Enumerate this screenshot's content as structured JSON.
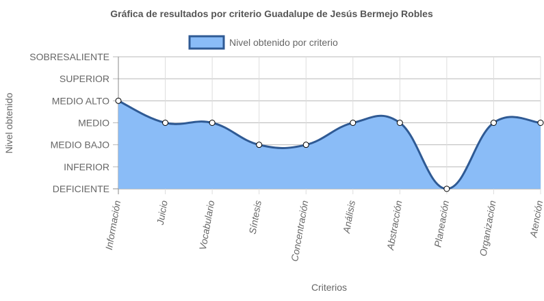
{
  "chart_data": {
    "type": "area",
    "title": "Gráfica de resultados por criterio Guadalupe de Jesús Bermejo Robles",
    "xlabel": "Criterios",
    "ylabel": "Nivel obtenido",
    "categories": [
      "Información",
      "Juicio",
      "Vocabulario",
      "Síntesis",
      "Concentración",
      "Análisis",
      "Abstracción",
      "Planeación",
      "Organización",
      "Atención"
    ],
    "y_levels": [
      "DEFICIENTE",
      "INFERIOR",
      "MEDIO BAJO",
      "MEDIO",
      "MEDIO ALTO",
      "SUPERIOR",
      "SOBRESALIENTE"
    ],
    "ylim": [
      0,
      6
    ],
    "series": [
      {
        "name": "Nivel obtenido por criterio",
        "values": [
          "MEDIO ALTO",
          "MEDIO",
          "MEDIO",
          "MEDIO BAJO",
          "MEDIO BAJO",
          "MEDIO",
          "MEDIO",
          "DEFICIENTE",
          "MEDIO",
          "MEDIO"
        ],
        "fill_color": "#8abcf7",
        "line_color": "#2f5a94"
      }
    ],
    "legend_position": "top",
    "grid": true
  }
}
